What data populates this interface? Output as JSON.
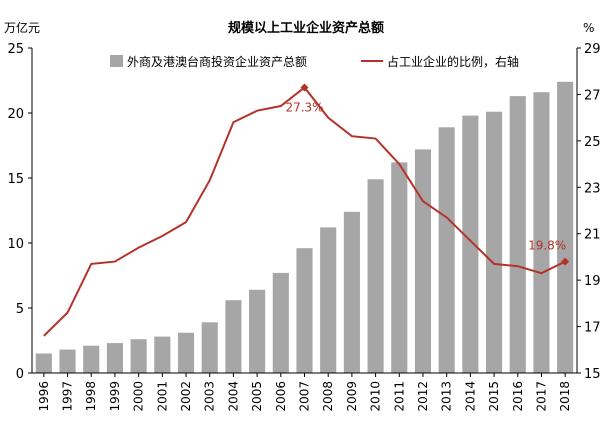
{
  "chart_data": {
    "type": "bar+line",
    "title": "规模以上工业企业资产总额",
    "left_unit": "万亿元",
    "right_unit": "%",
    "categories": [
      "1996",
      "1997",
      "1998",
      "1999",
      "2000",
      "2001",
      "2002",
      "2003",
      "2004",
      "2005",
      "2006",
      "2007",
      "2008",
      "2009",
      "2010",
      "2011",
      "2012",
      "2013",
      "2014",
      "2015",
      "2016",
      "2017",
      "2018"
    ],
    "y_left": {
      "min": 0,
      "max": 25,
      "ticks": [
        0,
        5,
        10,
        15,
        20,
        25
      ]
    },
    "y_right": {
      "min": 15,
      "max": 29,
      "ticks": [
        15,
        17,
        19,
        21,
        23,
        25,
        27,
        29
      ]
    },
    "series": [
      {
        "name": "外商及港澳台商投资企业资产总额",
        "type": "bar",
        "axis": "left",
        "color": "#a6a6a6",
        "values": [
          1.5,
          1.8,
          2.1,
          2.3,
          2.6,
          2.8,
          3.1,
          3.9,
          5.6,
          6.4,
          7.7,
          9.6,
          11.2,
          12.4,
          14.9,
          16.2,
          17.2,
          18.9,
          19.8,
          20.1,
          21.3,
          21.6,
          22.4
        ]
      },
      {
        "name": "占工业企业的比例，右轴",
        "type": "line",
        "axis": "right",
        "color": "#b5322a",
        "values": [
          16.6,
          17.6,
          19.7,
          19.8,
          20.4,
          20.9,
          21.5,
          23.3,
          25.8,
          26.3,
          26.5,
          27.3,
          26.0,
          25.2,
          25.1,
          24.0,
          22.4,
          21.7,
          20.7,
          19.7,
          19.6,
          19.3,
          19.8
        ]
      }
    ],
    "annotations": [
      {
        "label": "27.3%",
        "x": "2007",
        "y": 27.3
      },
      {
        "label": "19.8%",
        "x": "2018",
        "y": 19.8
      }
    ],
    "grid": false,
    "legend_position": "top"
  }
}
